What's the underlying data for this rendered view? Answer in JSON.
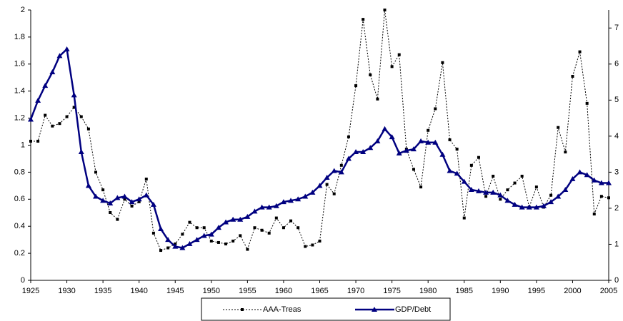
{
  "chart_data": {
    "type": "line",
    "x": [
      1925,
      1926,
      1927,
      1928,
      1929,
      1930,
      1931,
      1932,
      1933,
      1934,
      1935,
      1936,
      1937,
      1938,
      1939,
      1940,
      1941,
      1942,
      1943,
      1944,
      1945,
      1946,
      1947,
      1948,
      1949,
      1950,
      1951,
      1952,
      1953,
      1954,
      1955,
      1956,
      1957,
      1958,
      1959,
      1960,
      1961,
      1962,
      1963,
      1964,
      1965,
      1966,
      1967,
      1968,
      1969,
      1970,
      1971,
      1972,
      1973,
      1974,
      1975,
      1976,
      1977,
      1978,
      1979,
      1980,
      1981,
      1982,
      1983,
      1984,
      1985,
      1986,
      1987,
      1988,
      1989,
      1990,
      1991,
      1992,
      1993,
      1994,
      1995,
      1996,
      1997,
      1998,
      1999,
      2000,
      2001,
      2002,
      2003,
      2004,
      2005
    ],
    "series": [
      {
        "name": "AAA-Treas",
        "color": "#000000",
        "axis": "y2",
        "values": [
          3.86,
          3.86,
          4.58,
          4.28,
          4.35,
          4.54,
          4.8,
          4.54,
          4.2,
          3.0,
          2.51,
          1.88,
          1.69,
          2.25,
          2.06,
          2.18,
          2.81,
          1.31,
          0.83,
          0.9,
          1.01,
          1.28,
          1.61,
          1.46,
          1.46,
          1.09,
          1.05,
          1.01,
          1.09,
          1.24,
          0.86,
          1.46,
          1.39,
          1.31,
          1.73,
          1.46,
          1.65,
          1.46,
          0.94,
          0.98,
          1.09,
          2.66,
          2.4,
          3.19,
          3.98,
          5.4,
          7.24,
          5.7,
          5.03,
          7.5,
          5.93,
          6.26,
          3.64,
          3.08,
          2.59,
          4.16,
          4.76,
          6.04,
          3.9,
          3.64,
          1.73,
          3.19,
          3.41,
          2.33,
          2.89,
          2.25,
          2.51,
          2.7,
          2.89,
          2.03,
          2.59,
          2.03,
          2.36,
          4.24,
          3.56,
          5.66,
          6.34,
          4.91,
          1.84,
          2.33,
          2.29
        ]
      },
      {
        "name": "GDP/Debt",
        "color": "#000080",
        "values": [
          1.19,
          1.33,
          1.44,
          1.54,
          1.66,
          1.71,
          1.37,
          0.95,
          0.7,
          0.62,
          0.59,
          0.57,
          0.61,
          0.62,
          0.58,
          0.6,
          0.63,
          0.56,
          0.38,
          0.3,
          0.25,
          0.24,
          0.27,
          0.3,
          0.33,
          0.34,
          0.39,
          0.43,
          0.45,
          0.45,
          0.47,
          0.51,
          0.54,
          0.54,
          0.55,
          0.58,
          0.59,
          0.6,
          0.62,
          0.65,
          0.7,
          0.76,
          0.81,
          0.8,
          0.9,
          0.95,
          0.95,
          0.98,
          1.03,
          1.12,
          1.06,
          0.94,
          0.96,
          0.97,
          1.03,
          1.02,
          1.02,
          0.93,
          0.81,
          0.79,
          0.73,
          0.67,
          0.66,
          0.65,
          0.65,
          0.63,
          0.59,
          0.56,
          0.54,
          0.54,
          0.54,
          0.55,
          0.58,
          0.62,
          0.67,
          0.75,
          0.8,
          0.78,
          0.74,
          0.72,
          0.72
        ]
      }
    ],
    "xlim": [
      1925,
      2005
    ],
    "xticks": [
      1925,
      1930,
      1935,
      1940,
      1945,
      1950,
      1955,
      1960,
      1965,
      1970,
      1975,
      1980,
      1985,
      1990,
      1995,
      2000,
      2005
    ],
    "ylim": [
      0,
      2
    ],
    "yticks": [
      0,
      0.2,
      0.4,
      0.6,
      0.8,
      1,
      1.2,
      1.4,
      1.6,
      1.8,
      2
    ],
    "y2lim": [
      0,
      7.5
    ],
    "y2ticks": [
      0,
      1,
      2,
      3,
      4,
      5,
      6,
      7
    ],
    "grid": false
  }
}
